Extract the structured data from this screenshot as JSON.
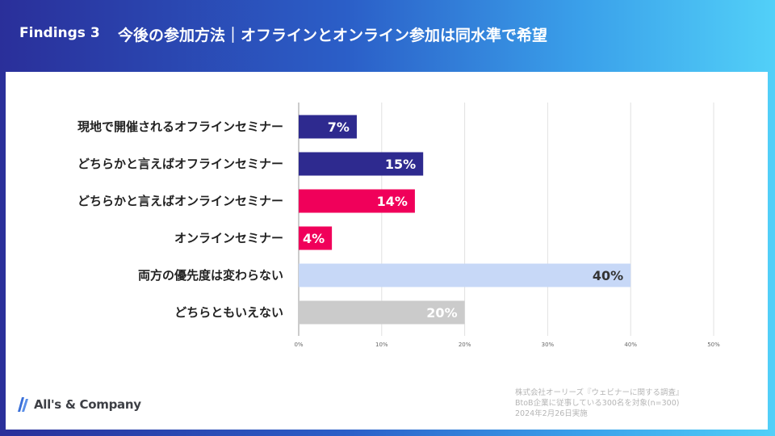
{
  "header": {
    "findings_label": "Findings 3",
    "headline": "今後の参加方法｜オフラインとオンライン参加は同水準で希望"
  },
  "chart_data": {
    "type": "bar",
    "orientation": "horizontal",
    "categories": [
      "現地で開催されるオフラインセミナー",
      "どちらかと言えばオフラインセミナー",
      "どちらかと言えばオンラインセミナー",
      "オンラインセミナー",
      "両方の優先度は変わらない",
      "どちらともいえない"
    ],
    "values": [
      7,
      15,
      14,
      4,
      40,
      20
    ],
    "value_labels": [
      "7%",
      "15%",
      "14%",
      "4%",
      "40%",
      "20%"
    ],
    "bar_colors": [
      "#2e2a8f",
      "#2e2a8f",
      "#f0005a",
      "#f0005a",
      "#c7d8f7",
      "#cbcbcb"
    ],
    "label_colors": [
      "#ffffff",
      "#ffffff",
      "#ffffff",
      "#ffffff",
      "#333333",
      "#ffffff"
    ],
    "xlim": [
      0,
      50
    ],
    "xticks": [
      0,
      10,
      20,
      30,
      40,
      50
    ],
    "xtick_labels": [
      "0%",
      "10%",
      "20%",
      "30%",
      "40%",
      "50%"
    ],
    "grid": true
  },
  "logo": {
    "text": "All's & Company",
    "color": "#3a6fd8"
  },
  "source": {
    "line1": "株式会社オーリーズ『ウェビナーに関する調査』",
    "line2": "BtoB企業に従事している300名を対象(n=300)",
    "line3": "2024年2月26日実施"
  }
}
